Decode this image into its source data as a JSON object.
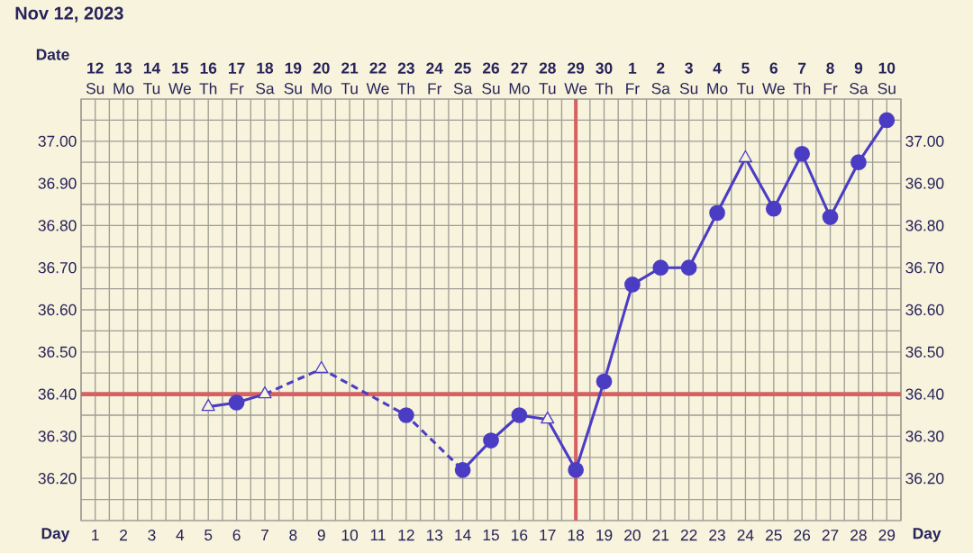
{
  "chart_data": {
    "type": "line",
    "title": "Nov 12, 2023",
    "xlabel": "Day",
    "x2label": "Date",
    "xlim": [
      0.5,
      29.5
    ],
    "xticks": [
      {
        "value": 0.5,
        "label": null
      },
      1,
      {
        "value": 1.5,
        "label": null
      },
      2,
      {
        "value": 2.5,
        "label": null
      },
      3,
      {
        "value": 3.5,
        "label": null
      },
      4,
      {
        "value": 4.5,
        "label": null
      },
      5,
      {
        "value": 5.5,
        "label": null
      },
      6,
      {
        "value": 6.5,
        "label": null
      },
      7,
      {
        "value": 7.5,
        "label": null
      },
      8,
      {
        "value": 8.5,
        "label": null
      },
      9,
      {
        "value": 9.5,
        "label": null
      },
      10,
      {
        "value": 10.5,
        "label": null
      },
      11,
      {
        "value": 11.5,
        "label": null
      },
      12,
      {
        "value": 12.5,
        "label": null
      },
      13,
      {
        "value": 13.5,
        "label": null
      },
      14,
      {
        "value": 14.5,
        "label": null
      },
      15,
      {
        "value": 15.5,
        "label": null
      },
      16,
      {
        "value": 16.5,
        "label": null
      },
      17,
      {
        "value": 17.5,
        "label": null
      },
      18,
      {
        "value": 18.5,
        "label": null
      },
      19,
      {
        "value": 19.5,
        "label": null
      },
      20,
      {
        "value": 20.5,
        "label": null
      },
      21,
      {
        "value": 21.5,
        "label": null
      },
      22,
      {
        "value": 22.5,
        "label": null
      },
      23,
      {
        "value": 23.5,
        "label": null
      },
      24,
      {
        "value": 24.5,
        "label": null
      },
      25,
      {
        "value": 25.5,
        "label": null
      },
      26,
      {
        "value": 26.5,
        "label": null
      },
      27,
      {
        "value": 27.5,
        "label": null
      },
      28,
      {
        "value": 28.5,
        "label": null
      },
      29,
      {
        "value": 29.5,
        "label": null
      }
    ],
    "x2lim": [
      "2023-11-11T12:00",
      "2023-12-10T12:00"
    ],
    "x2ticks": [
      {
        "value": "2023-11-12",
        "label": "**12** Su"
      },
      {
        "value": "2023-11-13",
        "label": "**13** Mo"
      },
      {
        "value": "2023-11-14",
        "label": "**14** Tu"
      },
      {
        "value": "2023-11-15",
        "label": "**15** We"
      },
      {
        "value": "2023-11-16",
        "label": "**16** Th"
      },
      {
        "value": "2023-11-17",
        "label": "**17** Fr"
      },
      {
        "value": "2023-11-18",
        "label": "**18** Sa"
      },
      {
        "value": "2023-11-19",
        "label": "**19** Su"
      },
      {
        "value": "2023-11-20",
        "label": "**20** Mo"
      },
      {
        "value": "2023-11-21",
        "label": "**21** Tu"
      },
      {
        "value": "2023-11-22",
        "label": "**22** We"
      },
      {
        "value": "2023-11-23",
        "label": "**23** Th"
      },
      {
        "value": "2023-11-24",
        "label": "**24** Fr"
      },
      {
        "value": "2023-11-25",
        "label": "**25** Sa"
      },
      {
        "value": "2023-11-26",
        "label": "**26** Su"
      },
      {
        "value": "2023-11-27",
        "label": "**27** Mo"
      },
      {
        "value": "2023-11-28",
        "label": "**28** Tu"
      },
      {
        "value": "2023-11-29",
        "label": "**29** We"
      },
      {
        "value": "2023-11-30",
        "label": "**30** Th"
      },
      {
        "value": "2023-12-01",
        "label": "**1** Fr"
      },
      {
        "value": "2023-12-02",
        "label": "**2** Sa"
      },
      {
        "value": "2023-12-03",
        "label": "**3** Su"
      },
      {
        "value": "2023-12-04",
        "label": "**4** Mo"
      },
      {
        "value": "2023-12-05",
        "label": "**5** Tu"
      },
      {
        "value": "2023-12-06",
        "label": "**6** We"
      },
      {
        "value": "2023-12-07",
        "label": "**7** Th"
      },
      {
        "value": "2023-12-08",
        "label": "**8** Fr"
      },
      {
        "value": "2023-12-09",
        "label": "**9** Sa"
      },
      {
        "value": "2023-12-10",
        "label": "**10** Su"
      }
    ],
    "ylim": [
      36.1,
      37.1
    ],
    "yticks": [
      {
        "value": 36.15,
        "label": null
      },
      {
        "value": 36.2,
        "label": "36.20"
      },
      {
        "value": 36.25,
        "label": null
      },
      {
        "value": 36.3,
        "label": "36.30"
      },
      {
        "value": 36.35,
        "label": null
      },
      {
        "value": 36.4,
        "label": "36.40"
      },
      {
        "value": 36.45,
        "label": null
      },
      {
        "value": 36.5,
        "label": "36.50"
      },
      {
        "value": 36.55,
        "label": null
      },
      {
        "value": 36.6,
        "label": "36.60"
      },
      {
        "value": 36.65,
        "label": null
      },
      {
        "value": 36.7,
        "label": "36.70"
      },
      {
        "value": 36.75,
        "label": null
      },
      {
        "value": 36.8,
        "label": "36.80"
      },
      {
        "value": 36.85,
        "label": null
      },
      {
        "value": 36.9,
        "label": "36.90"
      },
      {
        "value": 36.95,
        "label": null
      },
      {
        "value": 37.0,
        "label": "37.00"
      },
      {
        "value": 37.05,
        "label": null
      }
    ],
    "y2lim": [
      36.1,
      37.1
    ],
    "y2ticks": [
      {
        "value": 36.2,
        "label": "36.20"
      },
      {
        "value": 36.3,
        "label": "36.30"
      },
      {
        "value": 36.4,
        "label": "36.40"
      },
      {
        "value": 36.5,
        "label": "36.50"
      },
      {
        "value": 36.6,
        "label": "36.60"
      },
      {
        "value": 36.7,
        "label": "36.70"
      },
      {
        "value": 36.8,
        "label": "36.80"
      },
      {
        "value": 36.9,
        "label": "36.90"
      },
      {
        "value": 37.0,
        "label": "37.00"
      }
    ],
    "grid": true,
    "ref_lines": [
      {
        "axis": "y",
        "value": 36.4,
        "color": "#d46262"
      },
      {
        "axis": "x",
        "value": 18,
        "color": "#d46262"
      }
    ],
    "series": [
      {
        "line_style": "solid",
        "marker": "none",
        "color": "#4b3cc4",
        "x": [
          5,
          6,
          7
        ],
        "values": [
          36.37,
          36.38,
          36.4
        ]
      },
      {
        "line_style": "dashed",
        "marker": "none",
        "color": "#4b3cc4",
        "x": [
          7,
          9,
          12,
          14
        ],
        "values": [
          36.4,
          36.46,
          36.35,
          36.22
        ]
      },
      {
        "line_style": "solid",
        "marker": "none",
        "color": "#4b3cc4",
        "x": [
          14,
          15,
          16,
          17,
          18,
          19,
          20,
          21,
          22,
          23,
          24,
          25,
          26,
          27,
          28,
          29
        ],
        "values": [
          36.22,
          36.29,
          36.35,
          36.34,
          36.22,
          36.43,
          36.66,
          36.7,
          36.7,
          36.83,
          36.96,
          36.84,
          36.97,
          36.82,
          36.95,
          37.05
        ]
      },
      {
        "type": "scatter",
        "marker": "circle",
        "color": "#4b3cc4",
        "x": [
          6,
          12,
          14,
          15,
          16,
          18,
          19,
          20,
          21,
          22,
          23,
          25,
          26,
          27,
          28,
          29
        ],
        "values": [
          36.38,
          36.35,
          36.22,
          36.29,
          36.35,
          36.22,
          36.43,
          36.66,
          36.7,
          36.7,
          36.83,
          36.84,
          36.97,
          36.82,
          36.95,
          37.05
        ]
      },
      {
        "type": "scatter",
        "marker": "triangle",
        "color": "#4b3cc4",
        "x": [
          5,
          7,
          9,
          17,
          24
        ],
        "values": [
          36.37,
          36.4,
          36.46,
          36.34,
          36.96
        ]
      }
    ]
  }
}
